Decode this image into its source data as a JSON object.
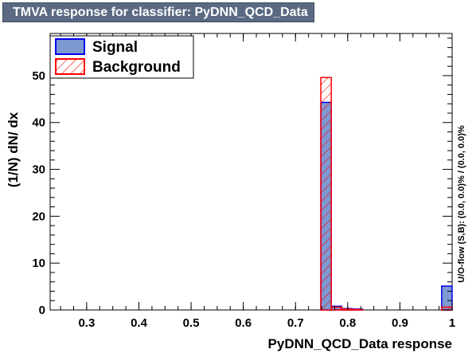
{
  "window": {
    "title": "TMVA response for classifier: PyDNN_QCD_Data"
  },
  "chart_data": {
    "type": "bar",
    "title": "TMVA response for classifier: PyDNN_QCD_Data",
    "xlabel": "PyDNN_QCD_Data response",
    "ylabel": "(1/N) dN/ dx",
    "side_label": "U/O-flow (S,B): (0.0, 0.0)% / (0.0, 0.0)%",
    "xlim": [
      0.23,
      1.0
    ],
    "ylim": [
      0,
      59
    ],
    "x_ticks": [
      "0.3",
      "0.4",
      "0.5",
      "0.6",
      "0.7",
      "0.8",
      "0.9",
      "1"
    ],
    "y_ticks": [
      "0",
      "10",
      "20",
      "30",
      "40",
      "50"
    ],
    "legend_placement": "top-left",
    "colors": {
      "signal_fill": "#7d99d1",
      "signal_line": "#0000ee",
      "background_line": "#ff0000",
      "title_bar": "#5a6a82"
    },
    "series": [
      {
        "name": "Signal",
        "style": "filled",
        "bins": [
          {
            "x0": 0.7485,
            "x1": 0.7685,
            "value": 44.3
          },
          {
            "x0": 0.7685,
            "x1": 0.7885,
            "value": 0.8
          },
          {
            "x0": 0.7885,
            "x1": 0.8085,
            "value": 0.3
          },
          {
            "x0": 0.8085,
            "x1": 0.8285,
            "value": 0.2
          },
          {
            "x0": 0.98,
            "x1": 1.0,
            "value": 5.1
          }
        ]
      },
      {
        "name": "Background",
        "style": "hatched",
        "bins": [
          {
            "x0": 0.7485,
            "x1": 0.7685,
            "value": 49.6
          },
          {
            "x0": 0.7685,
            "x1": 0.7885,
            "value": 0.6
          },
          {
            "x0": 0.7885,
            "x1": 0.8085,
            "value": 0.2
          },
          {
            "x0": 0.8085,
            "x1": 0.8285,
            "value": 0.1
          },
          {
            "x0": 0.98,
            "x1": 1.0,
            "value": 0.6
          }
        ]
      }
    ]
  }
}
